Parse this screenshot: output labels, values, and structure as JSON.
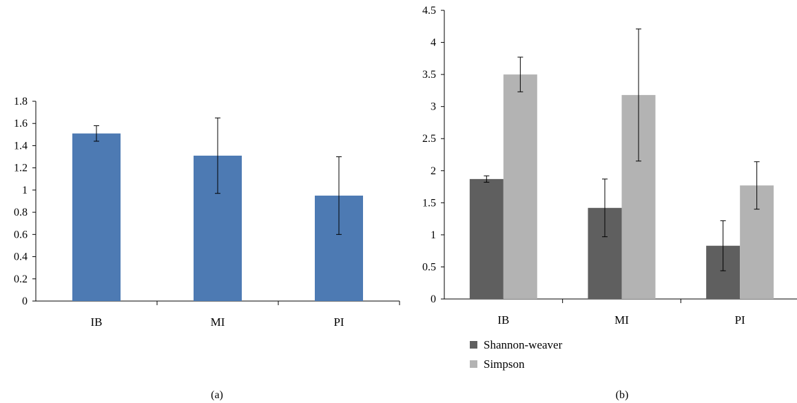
{
  "chart_data": [
    {
      "type": "bar",
      "panel_label": "(a)",
      "categories": [
        "IB",
        "MI",
        "PI"
      ],
      "series": [
        {
          "color": "#4d7ab3",
          "values": [
            1.51,
            1.31,
            0.95
          ],
          "errors": [
            0.07,
            0.34,
            0.35
          ]
        }
      ],
      "ylim": [
        0,
        1.8
      ],
      "yticks": [
        "0",
        "0.2",
        "0.4",
        "0.6",
        "0.8",
        "1",
        "1.2",
        "1.4",
        "1.6",
        "1.8"
      ],
      "grid": false
    },
    {
      "type": "bar",
      "panel_label": "(b)",
      "categories": [
        "IB",
        "MI",
        "PI"
      ],
      "series": [
        {
          "name": "Shannon-weaver",
          "color": "#5f5f5f",
          "values": [
            1.87,
            1.42,
            0.83
          ],
          "errors": [
            0.05,
            0.45,
            0.39
          ]
        },
        {
          "name": "Simpson",
          "color": "#b3b3b3",
          "values": [
            3.5,
            3.18,
            1.77
          ],
          "errors": [
            0.27,
            1.03,
            0.37
          ]
        }
      ],
      "ylim": [
        0,
        4.5
      ],
      "yticks": [
        "0",
        "0.5",
        "1",
        "1.5",
        "2",
        "2.5",
        "3",
        "3.5",
        "4",
        "4.5"
      ],
      "legend_position": "bottom-left",
      "grid": false
    }
  ]
}
